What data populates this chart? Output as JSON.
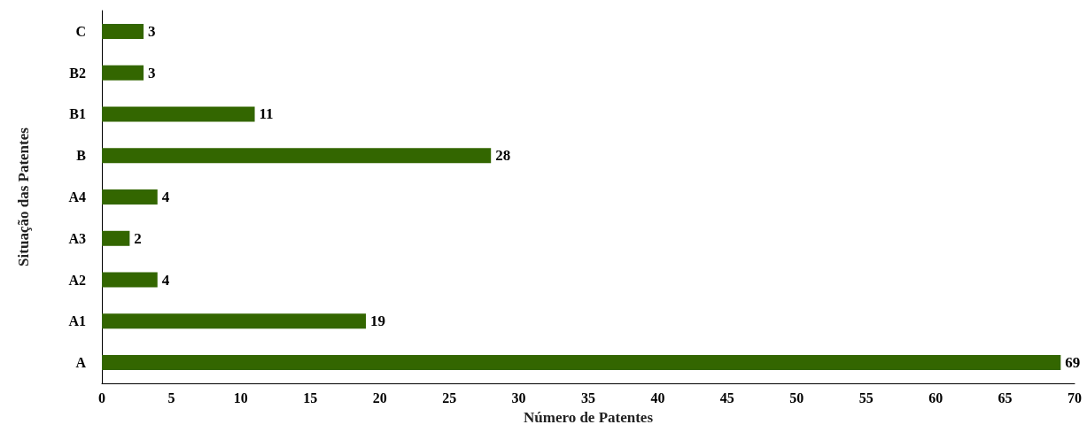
{
  "chart_data": {
    "type": "bar",
    "orientation": "horizontal",
    "xlabel": "Número de Patentes",
    "ylabel": "Situação das Patentes",
    "categories": [
      "C",
      "B2",
      "B1",
      "B",
      "A4",
      "A3",
      "A2",
      "A1",
      "A"
    ],
    "values": [
      3,
      3,
      11,
      28,
      4,
      2,
      4,
      19,
      69
    ],
    "color": "#336600",
    "xlim": [
      0,
      70
    ],
    "xticks": [
      0,
      5,
      10,
      15,
      20,
      25,
      30,
      35,
      40,
      45,
      50,
      55,
      60,
      65,
      70
    ],
    "data_labels": true,
    "grid": false
  }
}
